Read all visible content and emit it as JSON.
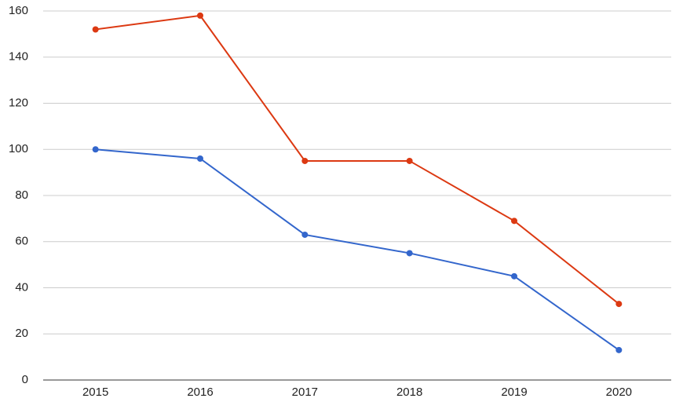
{
  "chart_data": {
    "type": "line",
    "categories": [
      "2015",
      "2016",
      "2017",
      "2018",
      "2019",
      "2020"
    ],
    "series": [
      {
        "color": "#3366cc",
        "values": [
          100,
          96,
          63,
          55,
          45,
          13
        ]
      },
      {
        "color": "#dc3912",
        "values": [
          152,
          158,
          95,
          95,
          69,
          33
        ]
      }
    ],
    "ylim": [
      0,
      160
    ],
    "yticks": [
      0,
      20,
      40,
      60,
      80,
      100,
      120,
      140,
      160
    ],
    "grid": true
  }
}
